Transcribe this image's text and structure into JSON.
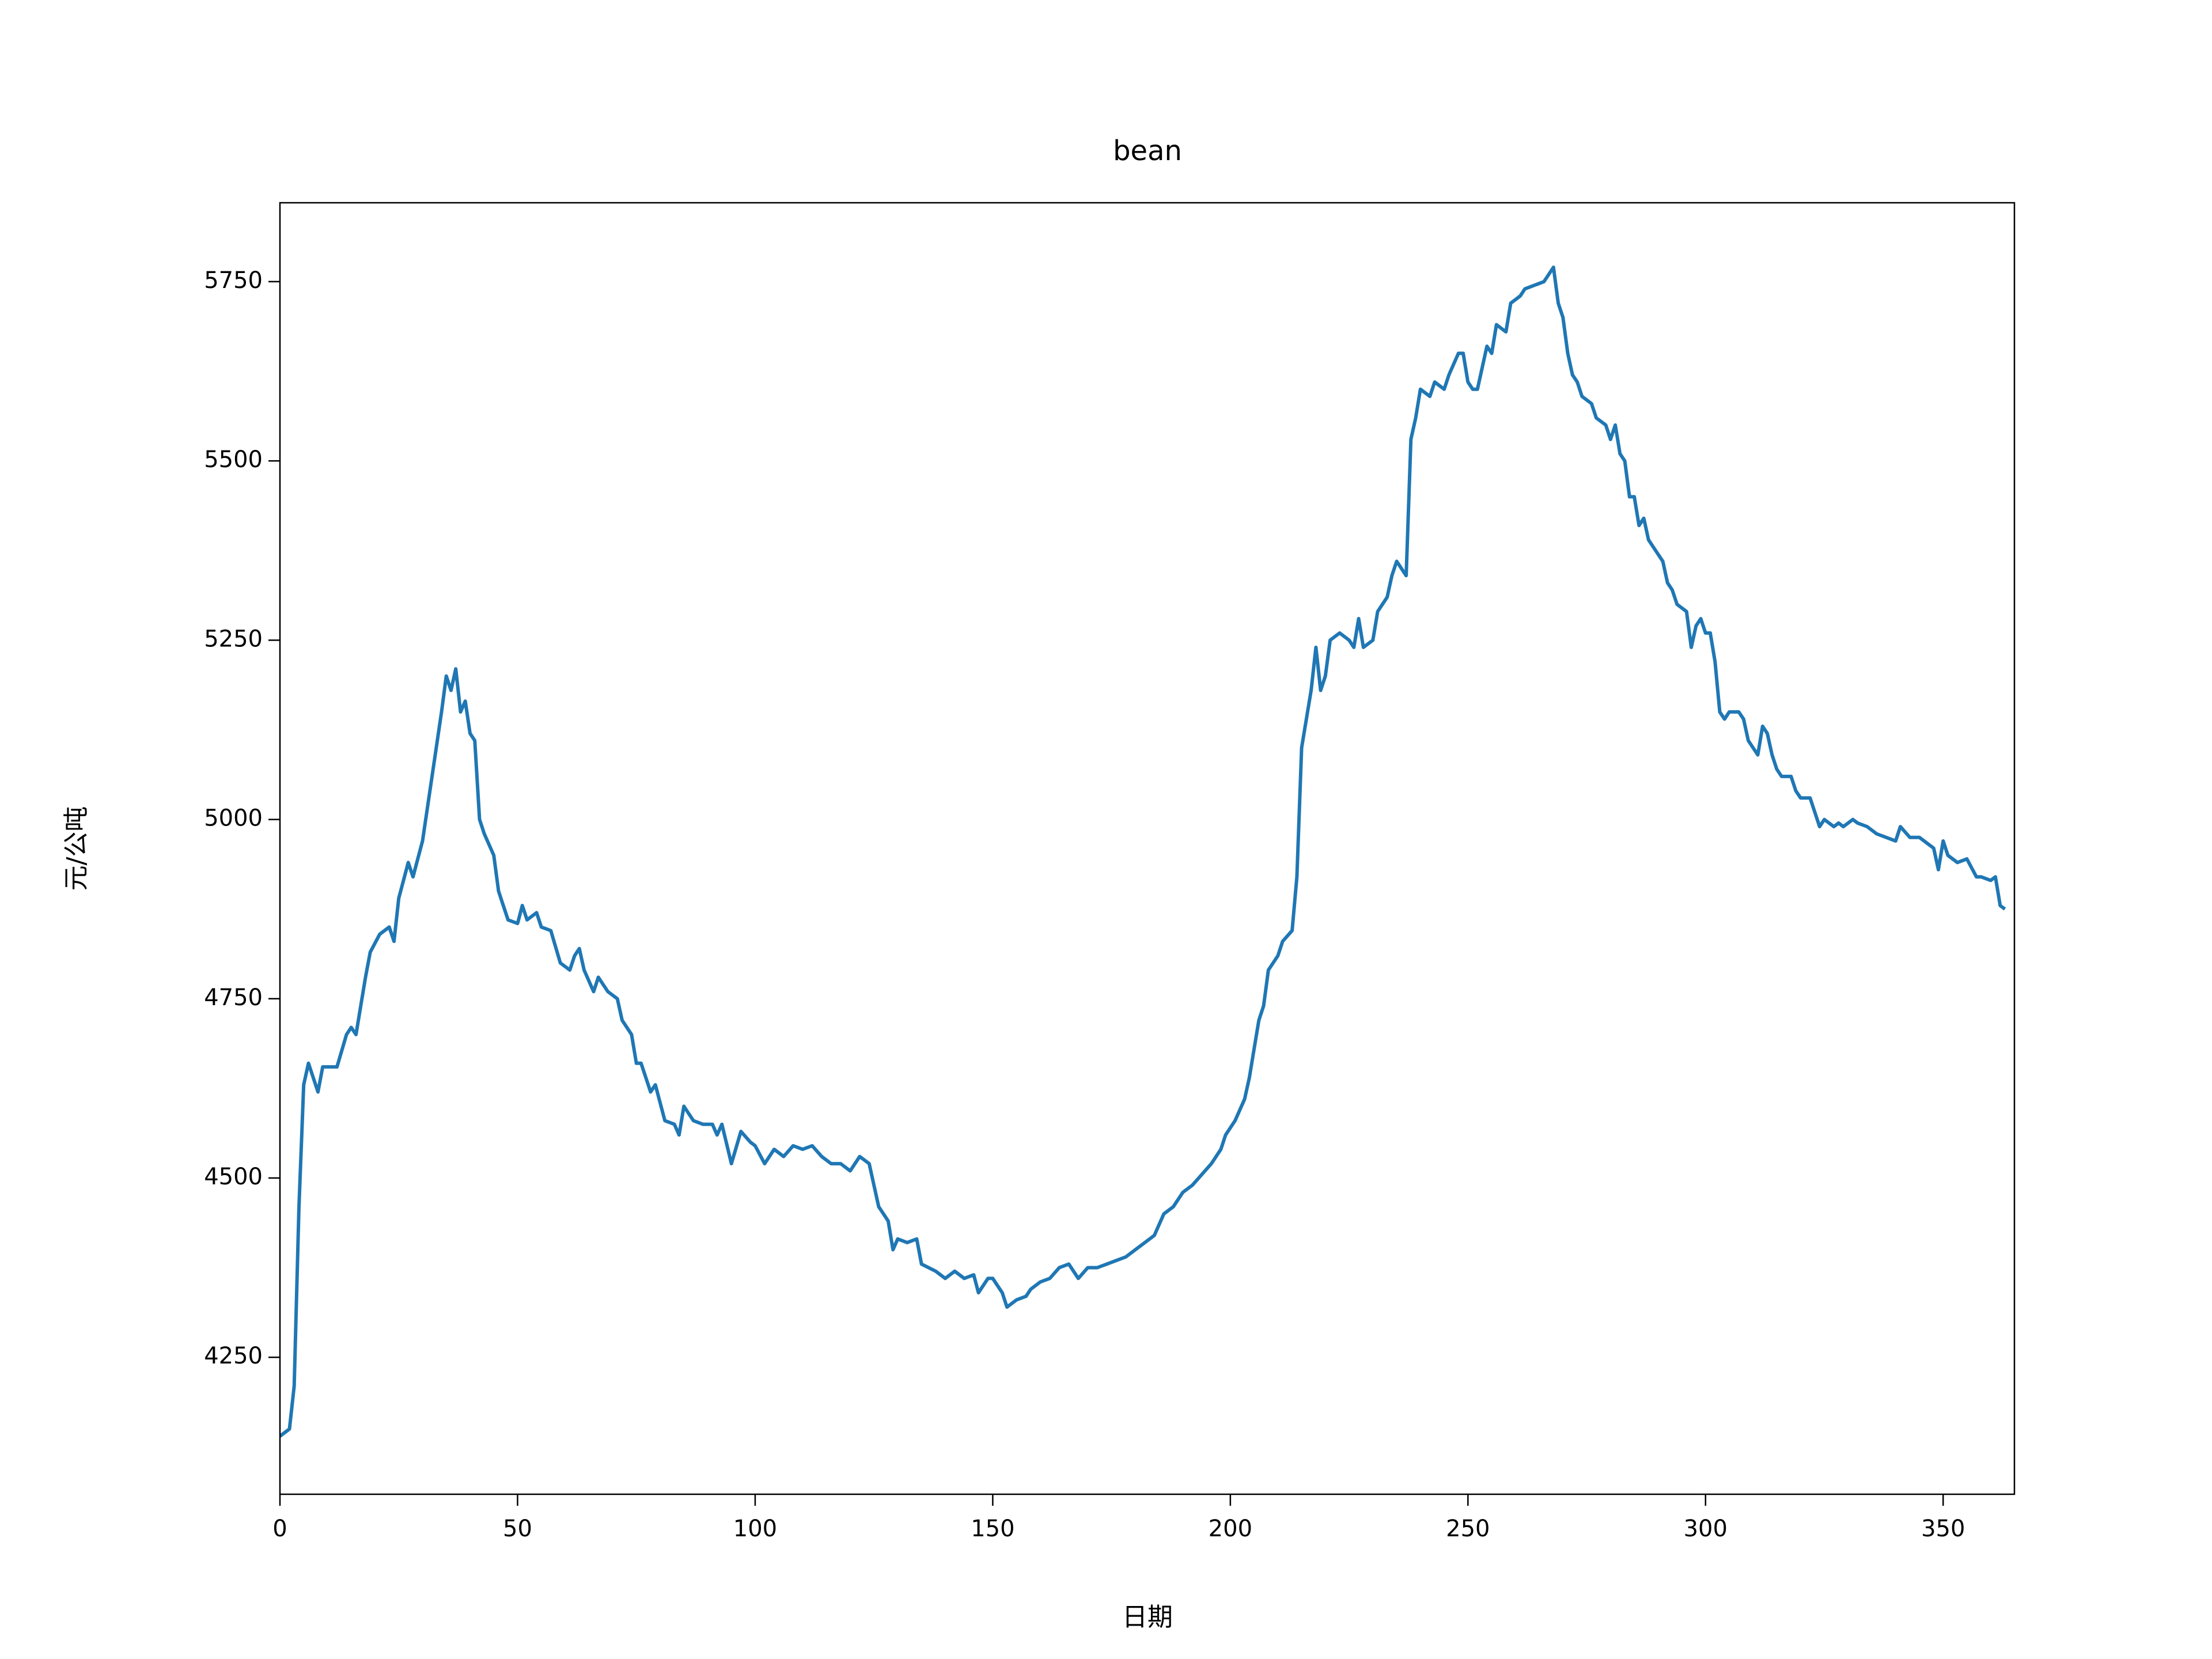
{
  "chart_data": {
    "type": "line",
    "title": "bean",
    "x_label": "日期",
    "y_label": "元/公吨",
    "xlim": [
      0,
      365
    ],
    "ylim": [
      4059,
      5860
    ],
    "xticks": [
      0,
      50,
      100,
      150,
      200,
      250,
      300,
      350
    ],
    "yticks": [
      4250,
      4500,
      4750,
      5000,
      5250,
      5500,
      5750
    ],
    "grid": false,
    "series": [
      {
        "color": "#1f77b4",
        "x": [
          0,
          2,
          3,
          4,
          5,
          6,
          8,
          9,
          12,
          14,
          15,
          16,
          18,
          19,
          21,
          23,
          24,
          25,
          27,
          28,
          30,
          32,
          34,
          35,
          36,
          37,
          38,
          39,
          40,
          41,
          42,
          43,
          45,
          46,
          47,
          48,
          50,
          51,
          52,
          54,
          55,
          57,
          59,
          61,
          62,
          63,
          64,
          66,
          67,
          69,
          71,
          72,
          74,
          75,
          76,
          78,
          79,
          81,
          83,
          84,
          85,
          87,
          89,
          91,
          92,
          93,
          95,
          97,
          99,
          100,
          102,
          104,
          106,
          108,
          110,
          112,
          114,
          116,
          118,
          120,
          122,
          124,
          126,
          128,
          129,
          130,
          132,
          134,
          135,
          138,
          140,
          142,
          144,
          146,
          147,
          149,
          150,
          152,
          153,
          155,
          157,
          158,
          160,
          162,
          164,
          166,
          168,
          170,
          172,
          174,
          176,
          178,
          180,
          182,
          184,
          186,
          188,
          190,
          192,
          194,
          196,
          198,
          199,
          201,
          203,
          204,
          205,
          206,
          207,
          208,
          210,
          211,
          213,
          214,
          215,
          217,
          218,
          219,
          220,
          221,
          223,
          225,
          226,
          227,
          228,
          230,
          231,
          233,
          234,
          235,
          237,
          238,
          239,
          240,
          242,
          243,
          245,
          246,
          248,
          249,
          250,
          251,
          252,
          254,
          255,
          256,
          258,
          259,
          261,
          262,
          264,
          266,
          268,
          269,
          270,
          271,
          272,
          273,
          274,
          276,
          277,
          279,
          280,
          281,
          282,
          283,
          284,
          285,
          286,
          287,
          288,
          290,
          291,
          292,
          293,
          294,
          296,
          297,
          298,
          299,
          300,
          301,
          302,
          303,
          304,
          305,
          307,
          308,
          309,
          310,
          311,
          312,
          313,
          314,
          315,
          316,
          318,
          319,
          320,
          322,
          323,
          324,
          325,
          327,
          328,
          329,
          331,
          332,
          334,
          336,
          338,
          340,
          341,
          343,
          345,
          347,
          348,
          349,
          350,
          351,
          353,
          355,
          357,
          358,
          360,
          361,
          362,
          363
        ],
        "values": [
          4140,
          4150,
          4210,
          4460,
          4630,
          4660,
          4620,
          4655,
          4655,
          4700,
          4710,
          4700,
          4780,
          4815,
          4840,
          4850,
          4830,
          4890,
          4940,
          4920,
          4970,
          5060,
          5150,
          5200,
          5180,
          5210,
          5150,
          5165,
          5120,
          5110,
          5000,
          4980,
          4950,
          4900,
          4880,
          4860,
          4855,
          4880,
          4860,
          4870,
          4850,
          4845,
          4800,
          4790,
          4810,
          4820,
          4790,
          4760,
          4780,
          4760,
          4750,
          4720,
          4700,
          4660,
          4660,
          4620,
          4630,
          4580,
          4575,
          4560,
          4600,
          4580,
          4575,
          4575,
          4560,
          4575,
          4520,
          4565,
          4550,
          4545,
          4520,
          4540,
          4530,
          4545,
          4540,
          4545,
          4530,
          4520,
          4520,
          4510,
          4530,
          4520,
          4460,
          4440,
          4400,
          4415,
          4410,
          4415,
          4380,
          4370,
          4360,
          4370,
          4360,
          4365,
          4340,
          4360,
          4360,
          4340,
          4320,
          4330,
          4335,
          4345,
          4355,
          4360,
          4375,
          4380,
          4360,
          4375,
          4375,
          4380,
          4385,
          4390,
          4400,
          4410,
          4420,
          4450,
          4460,
          4480,
          4490,
          4505,
          4520,
          4540,
          4560,
          4580,
          4610,
          4640,
          4680,
          4720,
          4740,
          4790,
          4810,
          4830,
          4845,
          4920,
          5100,
          5180,
          5240,
          5180,
          5200,
          5250,
          5260,
          5250,
          5240,
          5280,
          5240,
          5250,
          5290,
          5310,
          5340,
          5360,
          5340,
          5530,
          5560,
          5600,
          5590,
          5610,
          5600,
          5620,
          5650,
          5650,
          5610,
          5600,
          5600,
          5660,
          5650,
          5690,
          5680,
          5720,
          5730,
          5740,
          5745,
          5750,
          5770,
          5720,
          5700,
          5650,
          5620,
          5610,
          5590,
          5580,
          5560,
          5550,
          5530,
          5550,
          5510,
          5500,
          5450,
          5450,
          5410,
          5420,
          5390,
          5370,
          5360,
          5330,
          5320,
          5300,
          5290,
          5240,
          5270,
          5280,
          5260,
          5260,
          5220,
          5150,
          5140,
          5150,
          5150,
          5140,
          5110,
          5100,
          5090,
          5130,
          5120,
          5090,
          5070,
          5060,
          5060,
          5040,
          5030,
          5030,
          5010,
          4990,
          5000,
          4990,
          4995,
          4990,
          5000,
          4995,
          4990,
          4980,
          4975,
          4970,
          4990,
          4975,
          4975,
          4965,
          4960,
          4930,
          4970,
          4950,
          4940,
          4945,
          4920,
          4920,
          4915,
          4920,
          4880,
          4875
        ]
      }
    ]
  }
}
